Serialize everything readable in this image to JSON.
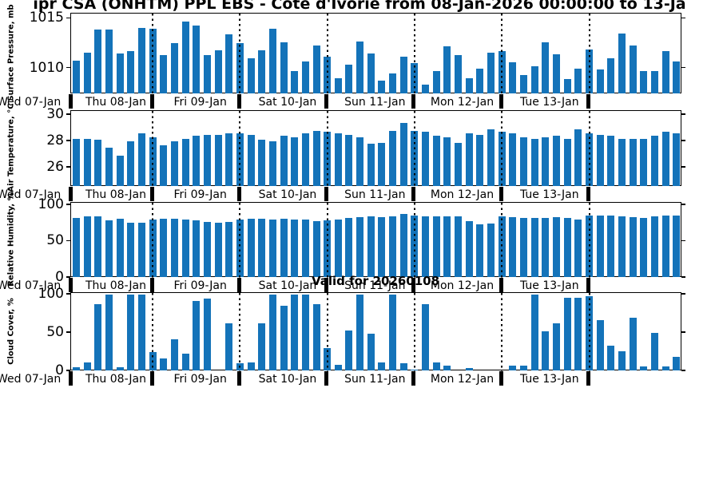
{
  "title": "ipr CSA (ONHTM) PPL EBS  - Cote d'Ivorie from 08-Jan-2026 00:00:00 to 13-Ja",
  "valid_label": "Valid for 20260108",
  "colors": {
    "bar": "#1473b9",
    "axis": "#000000"
  },
  "x_axis": {
    "edge_label": "Wed 07-Jan",
    "day_labels": [
      "Thu 08-Jan",
      "Fri 09-Jan",
      "Sat 10-Jan",
      "Sun 11-Jan",
      "Mon 12-Jan",
      "Tue 13-Jan"
    ],
    "bars_per_day": 8
  },
  "chart_data": [
    {
      "type": "bar",
      "ylabel": "Surface Pressure, mb",
      "yticks": [
        {
          "value": 1010,
          "label": "1010"
        },
        {
          "value": 1015,
          "label": "1015"
        }
      ],
      "ylim": [
        1007.4,
        1015.5
      ],
      "values": [
        1010.8,
        1011.6,
        1013.9,
        1013.9,
        1011.5,
        1011.7,
        1014.1,
        1014.0,
        1011.3,
        1012.5,
        1014.7,
        1014.3,
        1011.3,
        1011.8,
        1013.4,
        1012.5,
        1011.0,
        1011.8,
        1014.0,
        1012.6,
        1009.7,
        1010.7,
        1012.3,
        1011.2,
        1009.0,
        1010.4,
        1012.7,
        1011.5,
        1008.8,
        1009.5,
        1011.2,
        1010.5,
        1008.4,
        1009.7,
        1012.2,
        1011.3,
        1009.0,
        1010.0,
        1011.6,
        1011.7,
        1010.6,
        1009.3,
        1010.2,
        1012.6,
        1011.4,
        1008.9,
        1010.0,
        1011.9,
        1009.9,
        1011.0,
        1013.5,
        1012.3,
        1009.7,
        1009.7,
        1011.7,
        1010.7
      ]
    },
    {
      "type": "bar",
      "ylabel": "Air Temperature, °C",
      "yticks": [
        {
          "value": 26,
          "label": "26"
        },
        {
          "value": 28,
          "label": "28"
        },
        {
          "value": 30,
          "label": "30"
        }
      ],
      "ylim": [
        24.55,
        30.3
      ],
      "values": [
        28.2,
        28.2,
        28.1,
        27.5,
        26.9,
        28.0,
        28.6,
        28.3,
        27.7,
        28.0,
        28.2,
        28.4,
        28.5,
        28.5,
        28.6,
        28.6,
        28.5,
        28.1,
        28.0,
        28.4,
        28.3,
        28.6,
        28.8,
        28.7,
        28.6,
        28.5,
        28.3,
        27.8,
        27.9,
        28.8,
        29.4,
        28.8,
        28.7,
        28.4,
        28.3,
        27.9,
        28.6,
        28.5,
        28.9,
        28.7,
        28.6,
        28.3,
        28.2,
        28.3,
        28.4,
        28.2,
        28.9,
        28.6,
        28.5,
        28.4,
        28.2,
        28.2,
        28.2,
        28.4,
        28.7,
        28.6
      ]
    },
    {
      "type": "bar",
      "ylabel": "Relative Humidity, %",
      "yticks": [
        {
          "value": 0,
          "label": "0"
        },
        {
          "value": 50,
          "label": "50"
        },
        {
          "value": 100,
          "label": "100"
        }
      ],
      "ylim": [
        0,
        103
      ],
      "values": [
        82,
        84,
        84,
        79,
        81,
        76,
        76,
        80,
        81,
        81,
        80,
        79,
        77,
        76,
        77,
        80,
        81,
        81,
        80,
        81,
        80,
        80,
        78,
        79,
        80,
        82,
        83,
        84,
        83,
        84,
        88,
        86,
        84,
        84,
        84,
        84,
        78,
        74,
        75,
        84,
        83,
        82,
        82,
        82,
        83,
        82,
        80,
        85,
        85,
        85,
        84,
        83,
        82,
        84,
        85,
        85
      ]
    },
    {
      "type": "bar",
      "ylabel": "Cloud Cover, %",
      "yticks": [
        {
          "value": 0,
          "label": "0"
        },
        {
          "value": 50,
          "label": "50"
        },
        {
          "value": 100,
          "label": "100"
        }
      ],
      "ylim": [
        0,
        102
      ],
      "values": [
        5,
        11,
        87,
        100,
        5,
        100,
        100,
        25,
        17,
        42,
        23,
        92,
        95,
        0,
        62,
        10,
        11,
        62,
        100,
        85,
        100,
        100,
        88,
        30,
        8,
        53,
        100,
        49,
        11,
        100,
        10,
        2,
        87,
        11,
        7,
        0,
        4,
        0,
        0,
        0,
        7,
        7,
        100,
        52,
        63,
        96,
        96,
        98,
        67,
        33,
        26,
        70,
        6,
        50,
        6,
        19
      ]
    }
  ]
}
